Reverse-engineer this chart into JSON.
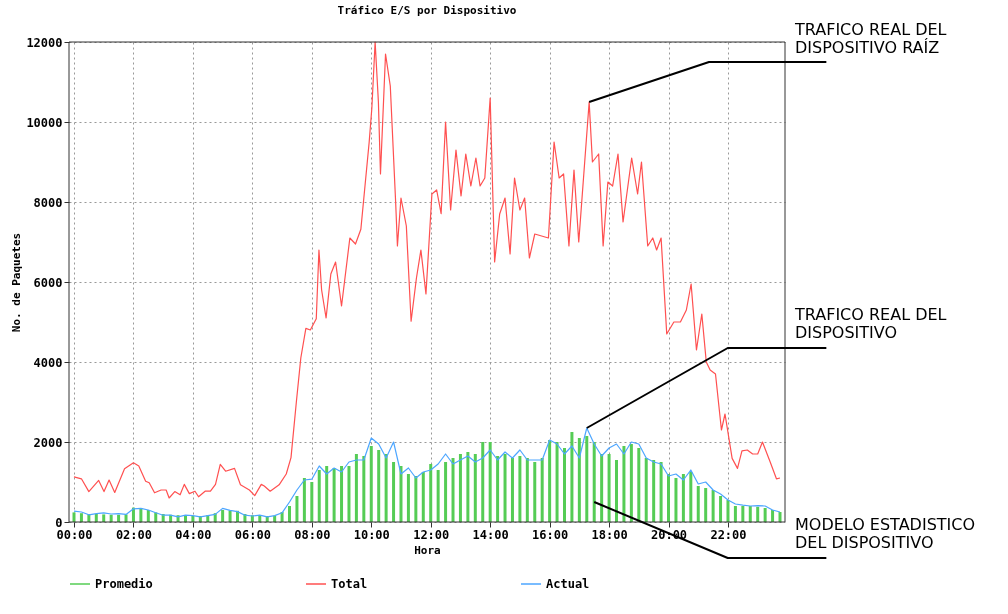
{
  "chart_data": {
    "type": "line",
    "title": "Tráfico E/S por Dispositivo",
    "xlabel": "Hora",
    "ylabel": "No. de Paquetes",
    "xlim": [
      0,
      23.75
    ],
    "ylim": [
      0,
      12000
    ],
    "xticks": [
      {
        "value": 0,
        "label": "00:00"
      },
      {
        "value": 2,
        "label": "02:00"
      },
      {
        "value": 4,
        "label": "04:00"
      },
      {
        "value": 6,
        "label": "06:00"
      },
      {
        "value": 8,
        "label": "08:00"
      },
      {
        "value": 10,
        "label": "10:00"
      },
      {
        "value": 12,
        "label": "12:00"
      },
      {
        "value": 14,
        "label": "14:00"
      },
      {
        "value": 16,
        "label": "16:00"
      },
      {
        "value": 18,
        "label": "18:00"
      },
      {
        "value": 20,
        "label": "20:00"
      },
      {
        "value": 22,
        "label": "22:00"
      }
    ],
    "yticks": [
      0,
      2000,
      4000,
      6000,
      8000,
      10000,
      12000
    ],
    "grid": true,
    "legend": "bottom",
    "series": [
      {
        "name": "Promedio",
        "type": "bar",
        "color": "#55cc55",
        "x": [
          0,
          0.25,
          0.5,
          0.75,
          1,
          1.25,
          1.5,
          1.75,
          2,
          2.25,
          2.5,
          2.75,
          3,
          3.25,
          3.5,
          3.75,
          4,
          4.25,
          4.5,
          4.75,
          5,
          5.25,
          5.5,
          5.75,
          6,
          6.25,
          6.5,
          6.75,
          7,
          7.25,
          7.5,
          7.75,
          8,
          8.25,
          8.5,
          8.75,
          9,
          9.25,
          9.5,
          9.75,
          10,
          10.25,
          10.5,
          10.75,
          11,
          11.25,
          11.5,
          11.75,
          12,
          12.25,
          12.5,
          12.75,
          13,
          13.25,
          13.5,
          13.75,
          14,
          14.25,
          14.5,
          14.75,
          15,
          15.25,
          15.5,
          15.75,
          16,
          16.25,
          16.5,
          16.75,
          17,
          17.25,
          17.5,
          17.75,
          18,
          18.25,
          18.5,
          18.75,
          19,
          19.25,
          19.5,
          19.75,
          20,
          20.25,
          20.5,
          20.75,
          21,
          21.25,
          21.5,
          21.75,
          22,
          22.25,
          22.5,
          22.75,
          23,
          23.25,
          23.5,
          23.75
        ],
        "values": [
          240,
          220,
          200,
          200,
          190,
          180,
          180,
          190,
          360,
          350,
          300,
          240,
          200,
          180,
          170,
          160,
          150,
          150,
          170,
          220,
          300,
          290,
          280,
          200,
          170,
          160,
          150,
          160,
          250,
          400,
          650,
          1100,
          1000,
          1300,
          1400,
          1350,
          1400,
          1400,
          1700,
          1650,
          1900,
          1800,
          1700,
          1500,
          1400,
          1200,
          1150,
          1250,
          1450,
          1300,
          1500,
          1600,
          1700,
          1750,
          1700,
          2000,
          2000,
          1650,
          1700,
          1600,
          1650,
          1600,
          1500,
          1600,
          2050,
          2000,
          1850,
          2250,
          2100,
          2150,
          2000,
          1700,
          1700,
          1550,
          1900,
          1950,
          1850,
          1600,
          1550,
          1500,
          1200,
          1100,
          1200,
          1250,
          900,
          850,
          800,
          650,
          550,
          400,
          400,
          400,
          380,
          350,
          300,
          250
        ]
      },
      {
        "name": "Total",
        "color": "#ff5050",
        "x": [
          0,
          0.25,
          0.5,
          0.83,
          1.01,
          1.18,
          1.37,
          1.7,
          2.0,
          2.18,
          2.41,
          2.53,
          2.71,
          2.93,
          3.1,
          3.2,
          3.39,
          3.57,
          3.71,
          3.88,
          4.07,
          4.19,
          4.41,
          4.59,
          4.76,
          4.92,
          5.1,
          5.4,
          5.6,
          5.9,
          6.08,
          6.3,
          6.4,
          6.6,
          6.9,
          7.14,
          7.3,
          7.48,
          7.63,
          7.8,
          7.95,
          8.15,
          8.24,
          8.33,
          8.48,
          8.64,
          8.8,
          9.0,
          9.28,
          9.47,
          9.65,
          9.93,
          10.02,
          10.13,
          10.24,
          10.31,
          10.48,
          10.64,
          10.82,
          10.88,
          11.0,
          11.18,
          11.34,
          11.52,
          11.67,
          11.84,
          12.04,
          12.2,
          12.35,
          12.5,
          12.67,
          12.85,
          13.02,
          13.18,
          13.35,
          13.52,
          13.66,
          13.82,
          14.0,
          14.15,
          14.32,
          14.5,
          14.67,
          14.82,
          15.0,
          15.16,
          15.32,
          15.5,
          15.96,
          16.15,
          16.32,
          16.47,
          16.65,
          16.82,
          16.98,
          17.33,
          17.44,
          17.65,
          17.8,
          17.96,
          18.12,
          18.3,
          18.47,
          18.76,
          18.96,
          19.09,
          19.3,
          19.47,
          19.6,
          19.75,
          19.94,
          20.18,
          20.4,
          20.6,
          20.76,
          20.94,
          21.12,
          21.27,
          21.4,
          21.58,
          21.78,
          21.9,
          22.14,
          22.32,
          22.47,
          22.65,
          22.83,
          23.0,
          23.16,
          23.42,
          23.63,
          23.75
        ],
        "values": [
          1130,
          1080,
          760,
          1040,
          760,
          1050,
          740,
          1330,
          1480,
          1400,
          1020,
          980,
          730,
          800,
          800,
          600,
          760,
          680,
          940,
          710,
          770,
          630,
          770,
          770,
          940,
          1440,
          1270,
          1340,
          930,
          800,
          660,
          940,
          900,
          770,
          930,
          1200,
          1610,
          3000,
          4100,
          4840,
          4800,
          5080,
          6800,
          5800,
          5100,
          6200,
          6500,
          5400,
          7100,
          6950,
          7320,
          9500,
          10350,
          12000,
          10500,
          8700,
          11700,
          10900,
          8000,
          6900,
          8100,
          7400,
          5020,
          6100,
          6800,
          5700,
          8200,
          8300,
          7710,
          10000,
          7800,
          9300,
          8150,
          9200,
          8400,
          9100,
          8400,
          8600,
          10600,
          6500,
          7700,
          8100,
          6700,
          8600,
          7800,
          8100,
          6600,
          7200,
          7100,
          9500,
          8600,
          8700,
          6900,
          8800,
          7000,
          10500,
          9000,
          9200,
          6900,
          8500,
          8400,
          9200,
          7500,
          9100,
          8200,
          9000,
          6900,
          7100,
          6800,
          7100,
          4700,
          5000,
          5000,
          5300,
          5950,
          4300,
          5200,
          4000,
          3800,
          3700,
          2300,
          2700,
          1590,
          1340,
          1780,
          1800,
          1700,
          1700,
          2000,
          1500,
          1080,
          1100
        ]
      },
      {
        "name": "Actual",
        "color": "#4da6ff",
        "x": [
          0,
          0.25,
          0.5,
          0.75,
          1,
          1.25,
          1.5,
          1.75,
          2,
          2.25,
          2.5,
          2.75,
          3,
          3.25,
          3.5,
          3.75,
          4,
          4.25,
          4.5,
          4.75,
          5,
          5.25,
          5.5,
          5.75,
          6,
          6.25,
          6.5,
          6.75,
          7,
          7.25,
          7.5,
          7.75,
          8,
          8.25,
          8.5,
          8.75,
          9,
          9.25,
          9.5,
          9.75,
          10,
          10.25,
          10.5,
          10.75,
          11,
          11.25,
          11.5,
          11.75,
          12,
          12.25,
          12.5,
          12.75,
          13,
          13.25,
          13.5,
          13.75,
          14,
          14.25,
          14.5,
          14.75,
          15,
          15.25,
          15.5,
          15.75,
          16,
          16.25,
          16.5,
          16.75,
          17,
          17.25,
          17.5,
          17.75,
          18,
          18.25,
          18.5,
          18.75,
          19,
          19.25,
          19.5,
          19.75,
          20,
          20.25,
          20.5,
          20.75,
          21,
          21.25,
          21.5,
          21.75,
          22,
          22.25,
          22.5,
          22.75,
          23,
          23.25,
          23.5,
          23.75
        ],
        "values": [
          270,
          250,
          180,
          210,
          230,
          200,
          210,
          190,
          330,
          340,
          300,
          230,
          170,
          170,
          130,
          170,
          160,
          130,
          160,
          190,
          340,
          290,
          260,
          170,
          150,
          170,
          130,
          160,
          230,
          500,
          800,
          1050,
          1070,
          1400,
          1200,
          1350,
          1250,
          1500,
          1550,
          1550,
          2100,
          1950,
          1600,
          2000,
          1200,
          1350,
          1100,
          1250,
          1300,
          1450,
          1700,
          1450,
          1550,
          1650,
          1500,
          1600,
          1800,
          1550,
          1750,
          1600,
          1800,
          1550,
          1550,
          1550,
          2050,
          1950,
          1700,
          1900,
          1600,
          2350,
          1950,
          1650,
          1850,
          1950,
          1700,
          2000,
          1950,
          1600,
          1500,
          1450,
          1150,
          1200,
          1050,
          1300,
          950,
          1000,
          800,
          700,
          550,
          450,
          420,
          400,
          410,
          400,
          300,
          250
        ]
      }
    ],
    "annotations": [
      {
        "text": "TRAFICO REAL DEL\nDISPOSITIVO RAÍZ",
        "x": 17.33,
        "y": 10500
      },
      {
        "text": "TRAFICO REAL DEL\nDISPOSITIVO",
        "x": 17.25,
        "y": 2350
      },
      {
        "text": "MODELO ESTADISTICO\nDEL DISPOSITIVO",
        "x": 17.5,
        "y": 500
      }
    ]
  }
}
